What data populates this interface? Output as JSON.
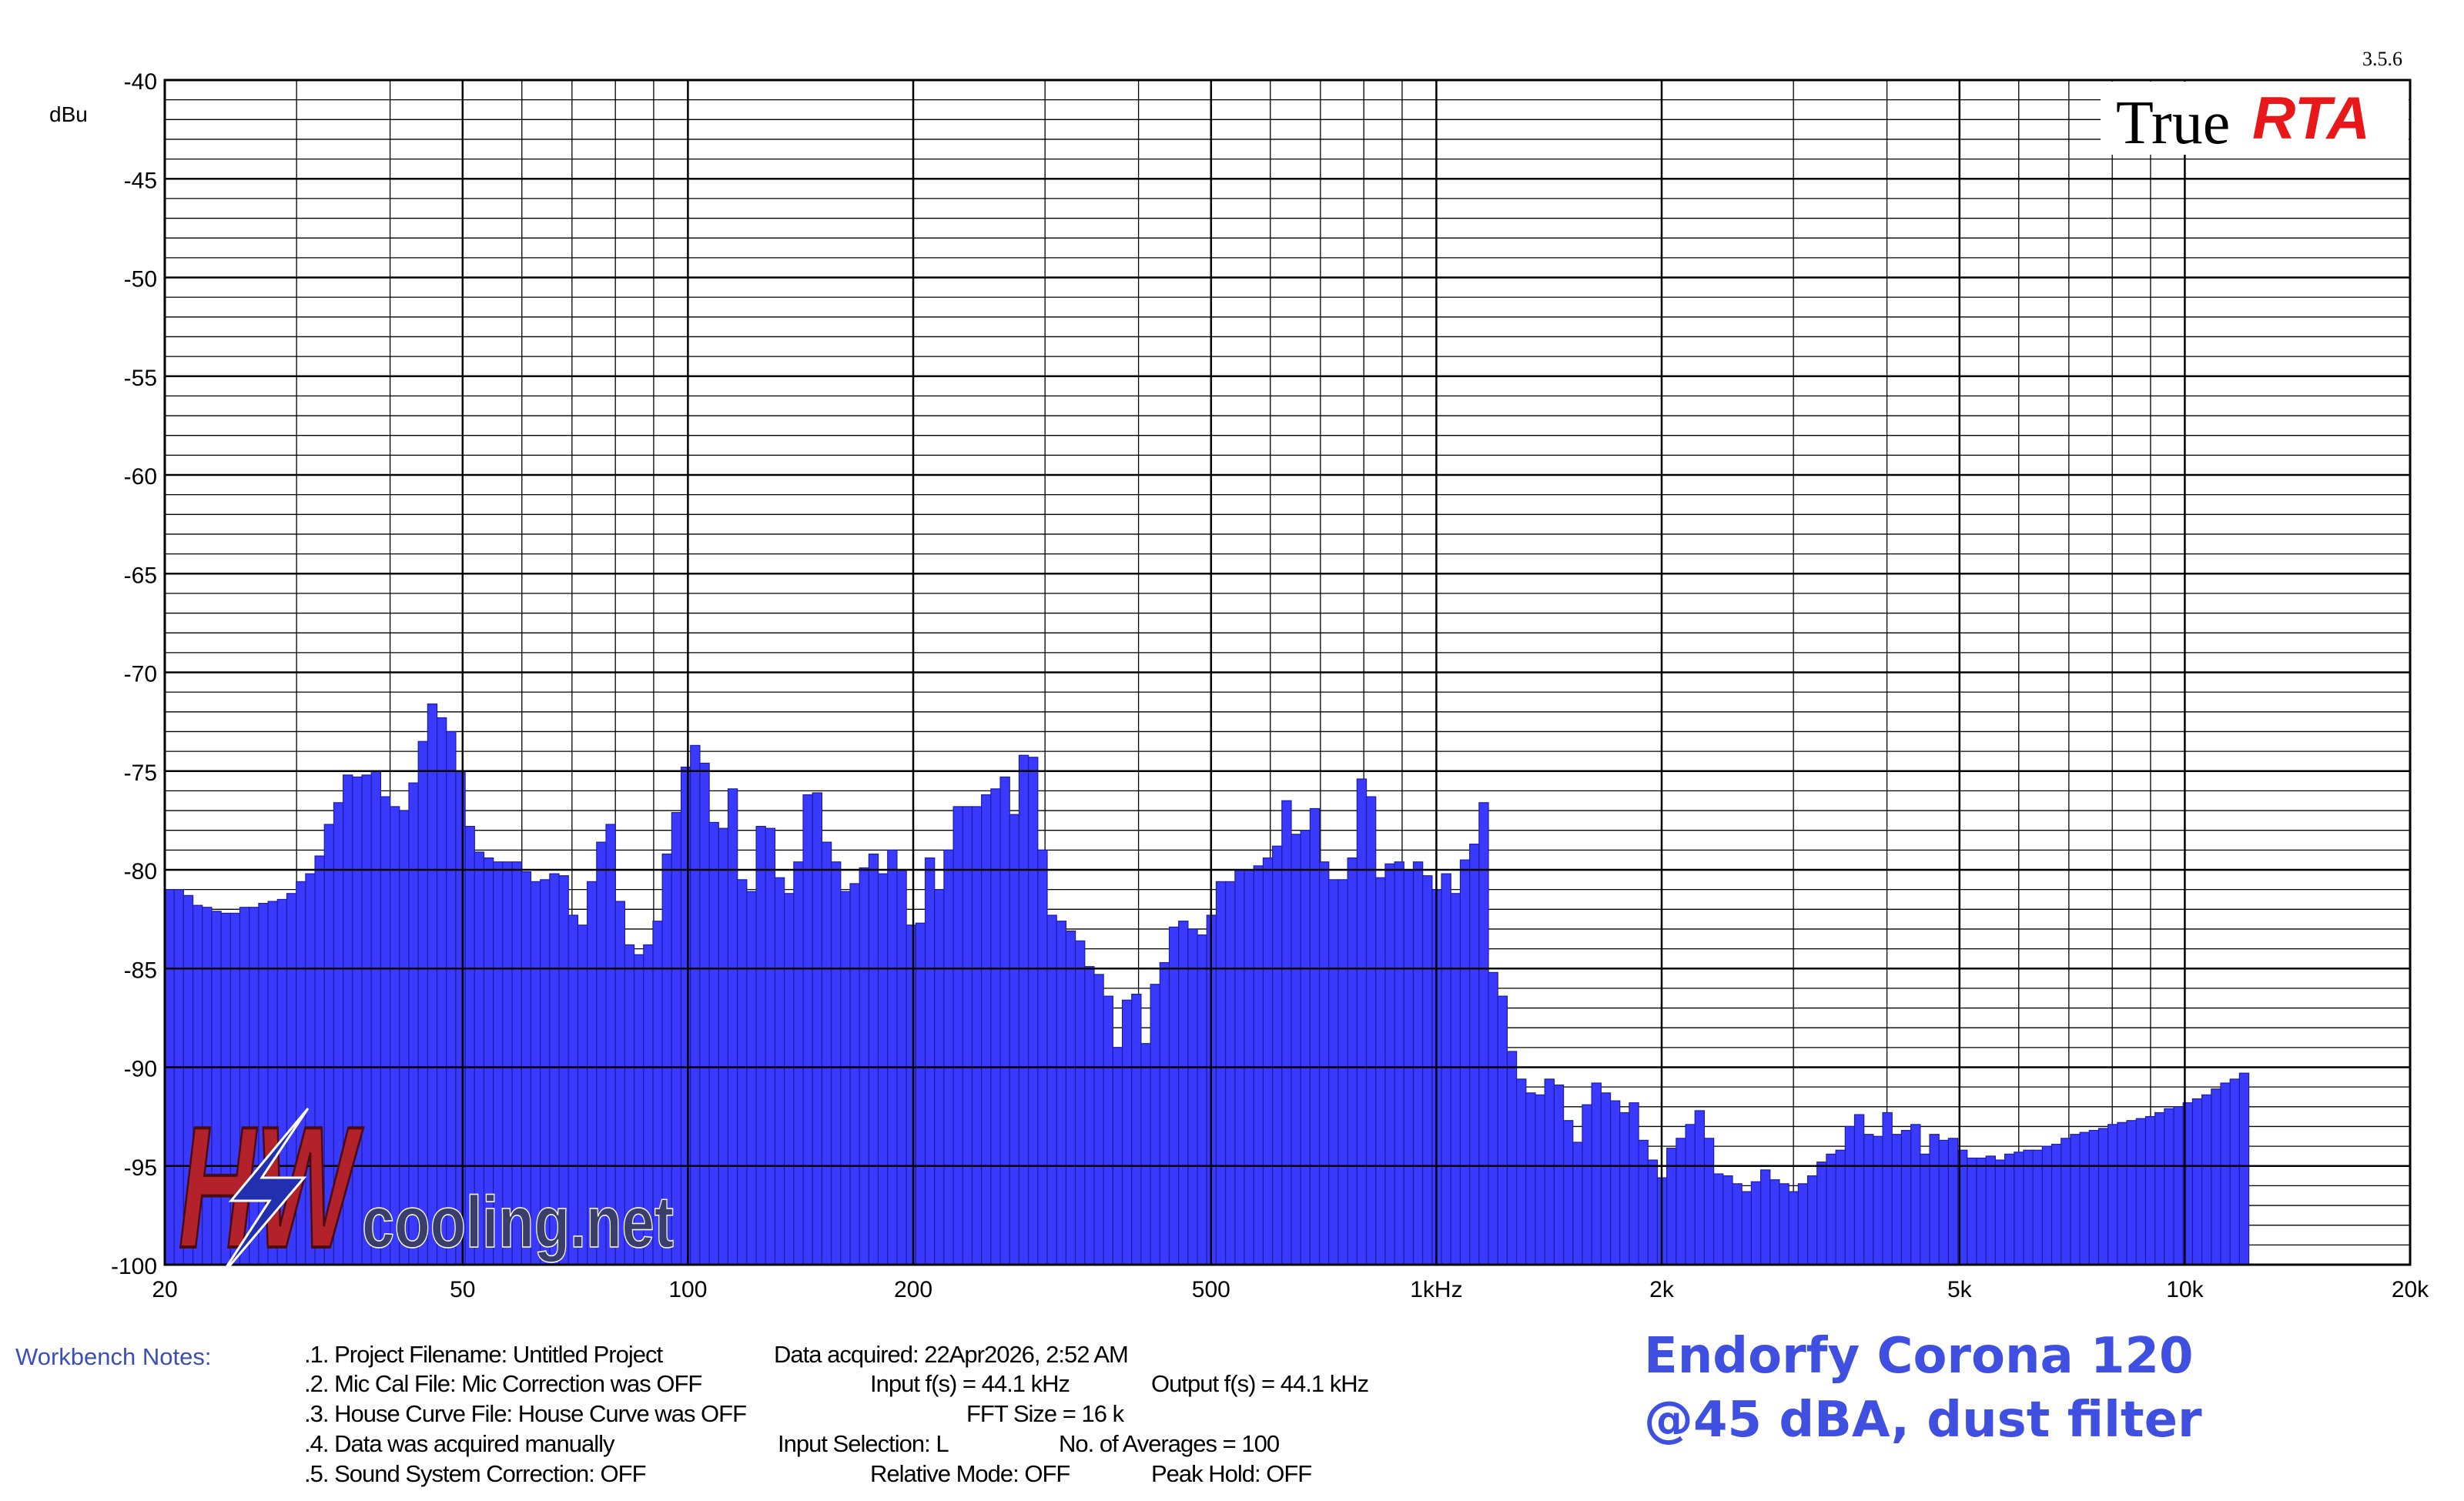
{
  "version": "3.5.6",
  "brand": {
    "plain": "True",
    "bold": "RTA"
  },
  "watermark": {
    "main": "HW",
    "sub": "cooling.net"
  },
  "notes_label": "Workbench Notes:",
  "notes": {
    "n1": ".1. Project Filename: Untitled Project",
    "n1b": "Data acquired: 22Apr2026, 2:52 AM",
    "n2": ".2. Mic Cal File: Mic Correction was OFF",
    "n2b": "Input f(s) = 44.1 kHz",
    "n2c": "Output f(s) = 44.1 kHz",
    "n3": ".3. House Curve File: House Curve was OFF",
    "n3b": "FFT Size = 16 k",
    "n4": ".4. Data was acquired manually",
    "n4b": "Input Selection: L",
    "n4c": "No. of Averages = 100",
    "n5": ".5. Sound System Correction: OFF",
    "n5b": "Relative Mode:  OFF",
    "n5c": "Peak Hold: OFF"
  },
  "caption": {
    "line1": "Endorfy Corona 120",
    "line2": "@45 dBA, dust filter"
  },
  "colors": {
    "bar": "#3a3aff",
    "bar_edge": "#1c1ca8",
    "caption": "#3f4fe0",
    "brand_red": "#e8171a"
  },
  "chart_data": {
    "type": "bar",
    "xscale": "log",
    "xlim": [
      20,
      20000
    ],
    "ylim": [
      -100,
      -40
    ],
    "ylabel": "dBu",
    "grid": true,
    "yticks": [
      -40,
      -45,
      -50,
      -55,
      -60,
      -65,
      -70,
      -75,
      -80,
      -85,
      -90,
      -95,
      -100
    ],
    "xticks": [
      {
        "v": 20,
        "label": "20"
      },
      {
        "v": 50,
        "label": "50"
      },
      {
        "v": 100,
        "label": "100"
      },
      {
        "v": 200,
        "label": "200"
      },
      {
        "v": 500,
        "label": "500"
      },
      {
        "v": 1000,
        "label": "1kHz"
      },
      {
        "v": 2000,
        "label": "2k"
      },
      {
        "v": 5000,
        "label": "5k"
      },
      {
        "v": 10000,
        "label": "10k"
      },
      {
        "v": 20000,
        "label": "20k"
      }
    ],
    "bars_per_octave": 24,
    "values": [
      -81.0,
      -81.0,
      -81.3,
      -81.8,
      -81.9,
      -82.1,
      -82.2,
      -82.2,
      -81.9,
      -81.9,
      -81.7,
      -81.6,
      -81.5,
      -81.2,
      -80.6,
      -80.2,
      -79.3,
      -77.7,
      -76.6,
      -75.2,
      -75.3,
      -75.2,
      -75.0,
      -76.3,
      -76.8,
      -77.0,
      -75.6,
      -73.5,
      -71.6,
      -72.3,
      -73.0,
      -75.0,
      -77.8,
      -79.1,
      -79.4,
      -79.6,
      -79.6,
      -79.6,
      -80.1,
      -80.6,
      -80.5,
      -80.2,
      -80.3,
      -82.3,
      -82.8,
      -80.6,
      -78.6,
      -77.7,
      -81.6,
      -83.8,
      -84.3,
      -83.8,
      -82.6,
      -79.2,
      -77.1,
      -74.8,
      -73.7,
      -74.6,
      -77.6,
      -77.9,
      -75.9,
      -80.5,
      -81.1,
      -77.8,
      -77.9,
      -80.4,
      -81.2,
      -79.6,
      -76.2,
      -76.1,
      -78.6,
      -79.6,
      -81.1,
      -80.7,
      -79.9,
      -79.2,
      -80.2,
      -79.0,
      -80.0,
      -82.8,
      -82.7,
      -79.4,
      -81.0,
      -79.0,
      -76.8,
      -76.8,
      -76.8,
      -76.2,
      -75.9,
      -75.3,
      -77.2,
      -74.2,
      -74.3,
      -79.0,
      -82.3,
      -82.6,
      -83.1,
      -83.6,
      -84.9,
      -85.3,
      -86.4,
      -89.0,
      -86.6,
      -86.3,
      -88.8,
      -85.8,
      -84.7,
      -82.9,
      -82.6,
      -83.0,
      -83.3,
      -82.3,
      -80.6,
      -80.6,
      -80.0,
      -80.0,
      -79.8,
      -79.4,
      -78.8,
      -76.5,
      -78.2,
      -78.0,
      -76.9,
      -79.6,
      -80.5,
      -80.5,
      -79.4,
      -75.4,
      -76.3,
      -80.4,
      -79.7,
      -79.6,
      -80.0,
      -79.6,
      -80.3,
      -81.0,
      -80.2,
      -81.2,
      -79.5,
      -78.7,
      -76.6,
      -85.2,
      -86.4,
      -89.2,
      -90.6,
      -91.3,
      -91.4,
      -90.6,
      -90.9,
      -92.7,
      -93.8,
      -91.9,
      -90.8,
      -91.3,
      -91.7,
      -92.3,
      -91.8,
      -93.7,
      -94.7,
      -95.6,
      -94.1,
      -93.6,
      -92.9,
      -92.2,
      -93.6,
      -95.4,
      -95.5,
      -95.9,
      -96.3,
      -95.8,
      -95.2,
      -95.7,
      -95.9,
      -96.3,
      -95.9,
      -95.5,
      -94.8,
      -94.4,
      -94.2,
      -93.0,
      -92.4,
      -93.4,
      -93.5,
      -92.3,
      -93.4,
      -93.2,
      -92.9,
      -94.4,
      -93.4,
      -93.7,
      -93.6,
      -94.2,
      -94.6,
      -94.6,
      -94.5,
      -94.7,
      -94.4,
      -94.3,
      -94.2,
      -94.2,
      -94.0,
      -93.9,
      -93.6,
      -93.4,
      -93.3,
      -93.2,
      -93.1,
      -92.9,
      -92.8,
      -92.7,
      -92.6,
      -92.5,
      -92.3,
      -92.1,
      -92.0,
      -91.8,
      -91.6,
      -91.4,
      -91.1,
      -90.8,
      -90.6,
      -90.3
    ]
  }
}
